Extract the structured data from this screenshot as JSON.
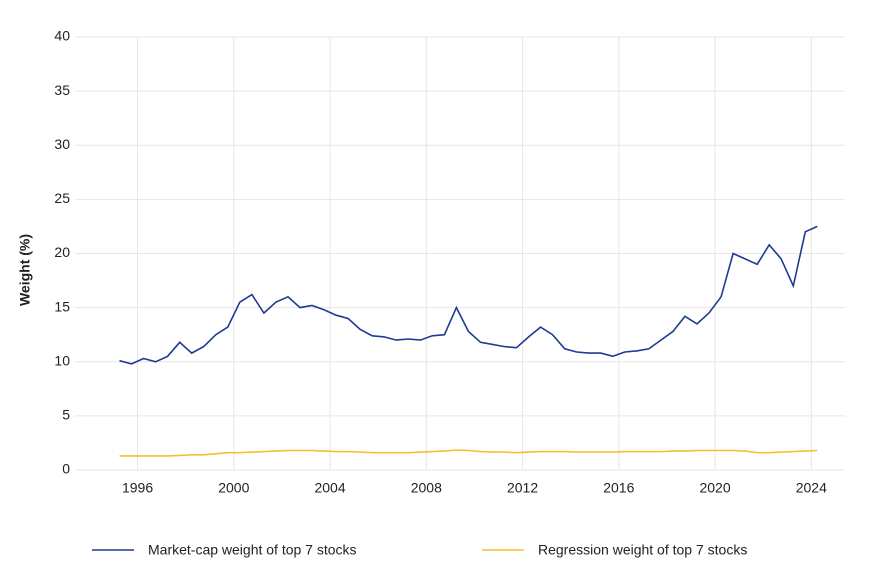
{
  "chart_data": {
    "type": "line",
    "y_label": "Weight (%)",
    "x": [
      1995.25,
      1995.75,
      1996.25,
      1996.75,
      1997.25,
      1997.75,
      1998.25,
      1998.75,
      1999.25,
      1999.75,
      2000.25,
      2000.75,
      2001.25,
      2001.75,
      2002.25,
      2002.75,
      2003.25,
      2003.75,
      2004.25,
      2004.75,
      2005.25,
      2005.75,
      2006.25,
      2006.75,
      2007.25,
      2007.75,
      2008.25,
      2008.75,
      2009.25,
      2009.75,
      2010.25,
      2010.75,
      2011.25,
      2011.75,
      2012.25,
      2012.75,
      2013.25,
      2013.75,
      2014.25,
      2014.75,
      2015.25,
      2015.75,
      2016.25,
      2016.75,
      2017.25,
      2017.75,
      2018.25,
      2018.75,
      2019.25,
      2019.75,
      2020.25,
      2020.75,
      2021.25,
      2021.75,
      2022.25,
      2022.75,
      2023.25,
      2023.75,
      2024.25
    ],
    "series": [
      {
        "name": "Market-cap weight of top 7 stocks",
        "color": "#1f3a93",
        "values": [
          10.1,
          9.8,
          10.3,
          10.0,
          10.5,
          11.8,
          10.8,
          11.4,
          12.5,
          13.2,
          15.5,
          16.2,
          14.5,
          15.5,
          16.0,
          15.0,
          15.2,
          14.8,
          14.3,
          14.0,
          13.0,
          12.4,
          12.3,
          12.0,
          12.1,
          12.0,
          12.4,
          12.5,
          15.0,
          12.8,
          11.8,
          11.6,
          11.4,
          11.3,
          12.3,
          13.2,
          12.5,
          11.2,
          10.9,
          10.8,
          10.8,
          10.5,
          10.9,
          11.0,
          11.2,
          12.0,
          12.8,
          14.2,
          13.5,
          14.5,
          16.0,
          20.0,
          19.5,
          19.0,
          20.8,
          19.5,
          17.0,
          22.0,
          22.5
        ]
      },
      {
        "name": "Regression weight of top 7 stocks",
        "color": "#f2c12e",
        "values": [
          1.3,
          1.3,
          1.3,
          1.3,
          1.3,
          1.35,
          1.4,
          1.4,
          1.5,
          1.6,
          1.6,
          1.65,
          1.7,
          1.75,
          1.8,
          1.8,
          1.8,
          1.75,
          1.7,
          1.7,
          1.65,
          1.6,
          1.6,
          1.6,
          1.6,
          1.65,
          1.7,
          1.75,
          1.85,
          1.8,
          1.7,
          1.65,
          1.65,
          1.6,
          1.65,
          1.7,
          1.7,
          1.7,
          1.65,
          1.65,
          1.65,
          1.65,
          1.7,
          1.7,
          1.7,
          1.7,
          1.75,
          1.75,
          1.8,
          1.8,
          1.8,
          1.8,
          1.75,
          1.6,
          1.6,
          1.65,
          1.7,
          1.75,
          1.8
        ]
      }
    ],
    "xlim": [
      1993.4,
      2025.4
    ],
    "xticks": [
      1996,
      2000,
      2004,
      2008,
      2012,
      2016,
      2020,
      2024
    ],
    "ylim": [
      0,
      40
    ],
    "yticks": [
      0,
      5,
      10,
      15,
      20,
      25,
      30,
      35,
      40
    ],
    "grid": true,
    "legend": "bottom"
  }
}
